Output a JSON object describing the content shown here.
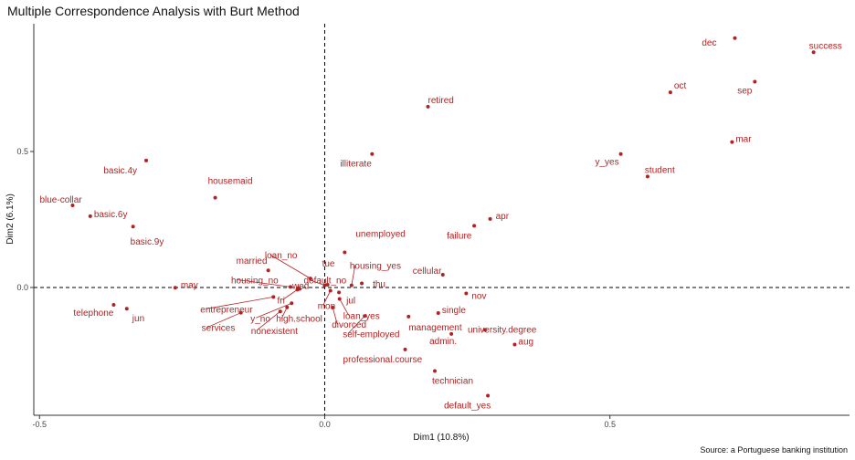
{
  "chart_data": {
    "type": "scatter",
    "title": "Multiple Correspondence Analysis with Burt Method",
    "caption": "Source: a Portuguese banking institution",
    "xlabel": "Dim1 (10.8%)",
    "ylabel": "Dim2 (6.1%)",
    "xlim": [
      -0.51,
      0.92
    ],
    "ylim": [
      -0.47,
      0.97
    ],
    "xticks": [
      "-0.5",
      "0.0",
      "0.5"
    ],
    "yticks": [
      "0.0",
      "0.5"
    ],
    "reference_lines": {
      "x": 0,
      "y": 0,
      "style": "dashed"
    },
    "grid": false,
    "point_color": "#b22222",
    "points": [
      {
        "label": "success",
        "x": 0.857,
        "y": 0.865
      },
      {
        "label": "dec",
        "x": 0.719,
        "y": 0.917
      },
      {
        "label": "oct",
        "x": 0.606,
        "y": 0.718
      },
      {
        "label": "sep",
        "x": 0.754,
        "y": 0.757
      },
      {
        "label": "retired",
        "x": 0.181,
        "y": 0.665
      },
      {
        "label": "mar",
        "x": 0.714,
        "y": 0.535
      },
      {
        "label": "y_yes",
        "x": 0.519,
        "y": 0.491
      },
      {
        "label": "student",
        "x": 0.566,
        "y": 0.408
      },
      {
        "label": "illiterate",
        "x": 0.083,
        "y": 0.491
      },
      {
        "label": "basic.4y",
        "x": -0.313,
        "y": 0.467
      },
      {
        "label": "housemaid",
        "x": -0.192,
        "y": 0.33
      },
      {
        "label": "blue-collar",
        "x": -0.442,
        "y": 0.302
      },
      {
        "label": "basic.6y",
        "x": -0.411,
        "y": 0.262
      },
      {
        "label": "basic.9y",
        "x": -0.336,
        "y": 0.224
      },
      {
        "label": "apr",
        "x": 0.29,
        "y": 0.252
      },
      {
        "label": "failure",
        "x": 0.262,
        "y": 0.227
      },
      {
        "label": "unemployed",
        "x": 0.035,
        "y": 0.129
      },
      {
        "label": "cellular",
        "x": 0.207,
        "y": 0.047
      },
      {
        "label": "married",
        "x": -0.099,
        "y": 0.063
      },
      {
        "label": "loan_no",
        "x": -0.025,
        "y": 0.033
      },
      {
        "label": "tue",
        "x": 0.005,
        "y": 0.01
      },
      {
        "label": "housing_yes",
        "x": 0.047,
        "y": 0.008
      },
      {
        "label": "default_no",
        "x": 0.0,
        "y": 0.008
      },
      {
        "label": "housing_no",
        "x": -0.06,
        "y": 0.002
      },
      {
        "label": "wed",
        "x": -0.044,
        "y": -0.005
      },
      {
        "label": "may",
        "x": -0.262,
        "y": -0.001
      },
      {
        "label": "thu",
        "x": 0.065,
        "y": 0.015
      },
      {
        "label": "jul",
        "x": 0.025,
        "y": -0.018
      },
      {
        "label": "nov",
        "x": 0.248,
        "y": -0.022
      },
      {
        "label": "entrepreneur",
        "x": -0.09,
        "y": -0.035
      },
      {
        "label": "fri",
        "x": -0.048,
        "y": -0.008
      },
      {
        "label": "mon",
        "x": 0.01,
        "y": -0.012
      },
      {
        "label": "telephone",
        "x": -0.37,
        "y": -0.064
      },
      {
        "label": "jun",
        "x": -0.347,
        "y": -0.078
      },
      {
        "label": "y_no",
        "x": -0.058,
        "y": -0.058
      },
      {
        "label": "loan_yes",
        "x": 0.026,
        "y": -0.042
      },
      {
        "label": "divorced",
        "x": 0.014,
        "y": -0.074
      },
      {
        "label": "high.school",
        "x": -0.066,
        "y": -0.073
      },
      {
        "label": "services",
        "x": -0.147,
        "y": -0.093
      },
      {
        "label": "nonexistent",
        "x": -0.078,
        "y": -0.088
      },
      {
        "label": "single",
        "x": 0.199,
        "y": -0.094
      },
      {
        "label": "management",
        "x": 0.147,
        "y": -0.107
      },
      {
        "label": "self-employed",
        "x": 0.07,
        "y": -0.105
      },
      {
        "label": "university.degree",
        "x": 0.281,
        "y": -0.156
      },
      {
        "label": "admin.",
        "x": 0.222,
        "y": -0.171
      },
      {
        "label": "aug",
        "x": 0.333,
        "y": -0.21
      },
      {
        "label": "professional.course",
        "x": 0.141,
        "y": -0.228
      },
      {
        "label": "technician",
        "x": 0.193,
        "y": -0.307
      },
      {
        "label": "default_yes",
        "x": 0.286,
        "y": -0.398
      }
    ]
  }
}
